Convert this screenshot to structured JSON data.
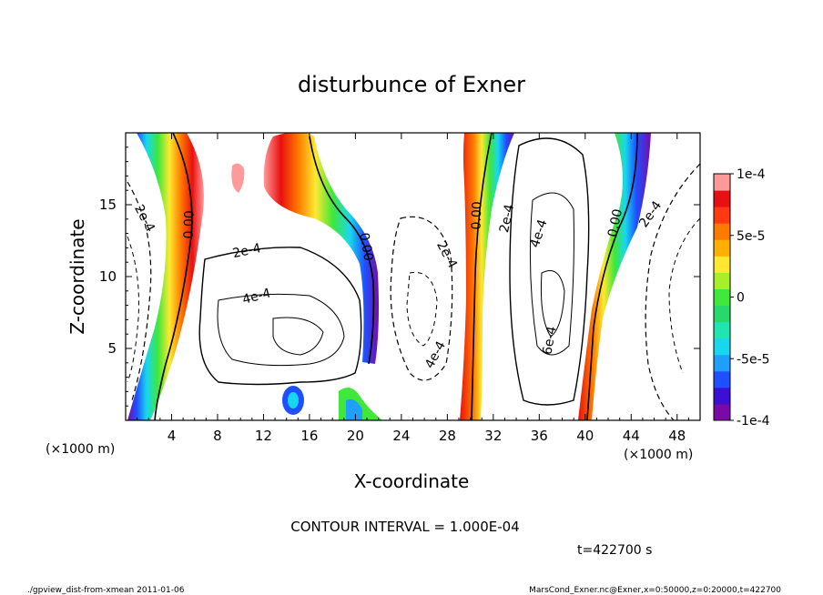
{
  "chart_data": {
    "type": "heatmap",
    "title": "disturbunce of Exner",
    "xlabel": "X-coordinate",
    "ylabel": "Z-coordinate",
    "x_unit": "(×1000 m)",
    "y_unit": "(×1000 m)",
    "xlim": [
      0,
      50
    ],
    "ylim": [
      0,
      20
    ],
    "x_ticks": [
      4,
      8,
      12,
      16,
      20,
      24,
      28,
      32,
      36,
      40,
      44,
      48
    ],
    "y_ticks": [
      5,
      10,
      15
    ],
    "colorbar": {
      "min": -0.0001,
      "max": 0.0001,
      "labels": [
        "1e-4",
        "5e-5",
        "0",
        "-5e-5",
        "-1e-4"
      ],
      "label_values": [
        0.0001,
        5e-05,
        0,
        -5e-05,
        -0.0001
      ],
      "colors": [
        "#7a0aa8",
        "#3b0fd6",
        "#1f4fff",
        "#1fa0ff",
        "#17d7ef",
        "#1fe6b0",
        "#27d86a",
        "#3fe83a",
        "#a8ee2a",
        "#ffe930",
        "#ffb000",
        "#ff7a00",
        "#ff3a10",
        "#e81010",
        "#ff9a9a"
      ]
    },
    "contour_labels": [
      "2e-4",
      "0.00",
      "2e-4",
      "4e-4",
      "0.00",
      "2e-4",
      "4e-4",
      "0.00",
      "2e-4",
      "4e-4",
      "6e-4",
      "0.00",
      "2e-4"
    ],
    "contour_interval_text": "CONTOUR INTERVAL = 1.000E-04",
    "time_text": "t=422700 s"
  },
  "footer": {
    "left": "./gpview_dist-from-xmean  2011-01-06",
    "right": "MarsCond_Exner.nc@Exner,x=0:50000,z=0:20000,t=422700"
  }
}
